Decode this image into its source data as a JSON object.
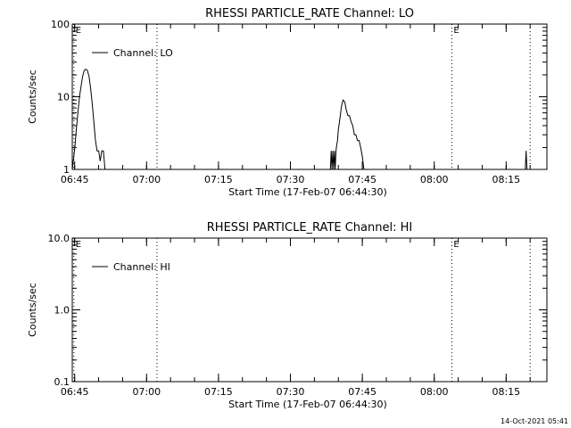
{
  "chart_data": [
    {
      "type": "line",
      "title": "RHESSI PARTICLE_RATE Channel: LO",
      "xlabel": "Start Time (17-Feb-07 06:44:30)",
      "ylabel": "Counts/sec",
      "y_scale": "log",
      "ylim": [
        1,
        100
      ],
      "y_ticks": [
        "1",
        "10",
        "100"
      ],
      "x_ticks": [
        "06:45",
        "07:00",
        "07:15",
        "07:30",
        "07:45",
        "08:00",
        "08:15"
      ],
      "xlim": [
        "06:44:30",
        "08:23:30"
      ],
      "legend": "top-left",
      "grid": false,
      "markers": [
        {
          "time": "06:44:50",
          "label": "E"
        },
        {
          "time": "07:02:10",
          "label": ""
        },
        {
          "time": "08:03:40",
          "label": "E"
        },
        {
          "time": "08:20:00",
          "label": ""
        }
      ],
      "series": [
        {
          "name": "Channel: LO",
          "segments": [
            {
              "x": [
                "06:44:30",
                "06:45:00",
                "06:45:20",
                "06:45:40",
                "06:46:00",
                "06:46:20",
                "06:46:40",
                "06:47:00",
                "06:47:20",
                "06:47:40",
                "06:48:00",
                "06:48:20",
                "06:48:40",
                "06:49:00",
                "06:49:20",
                "06:49:40",
                "06:50:00",
                "06:50:20",
                "06:50:40",
                "06:51:00",
                "06:51:20"
              ],
              "y": [
                1.0,
                1.9,
                3.5,
                6.0,
                10,
                14,
                19,
                23,
                24,
                23,
                19,
                13,
                8,
                4.5,
                2.5,
                1.8,
                1.8,
                1.3,
                1.8,
                1.8,
                1.0
              ]
            },
            {
              "x": [
                "07:38:20",
                "07:38:30",
                "07:38:40",
                "07:38:50",
                "07:39:00",
                "07:39:10",
                "07:39:20",
                "07:39:30",
                "07:39:40",
                "07:39:50",
                "07:40:00",
                "07:40:20",
                "07:40:40",
                "07:41:00",
                "07:41:20",
                "07:41:40",
                "07:42:00",
                "07:42:20",
                "07:42:40",
                "07:43:00",
                "07:43:20",
                "07:43:40",
                "07:44:00",
                "07:44:20",
                "07:44:40",
                "07:45:00",
                "07:45:20"
              ],
              "y": [
                1.0,
                1.8,
                1.0,
                1.8,
                1.0,
                1.8,
                1.0,
                1.8,
                2.2,
                2.5,
                3.5,
                5.0,
                7.5,
                9.0,
                8.5,
                6.5,
                5.5,
                5.5,
                4.5,
                4.0,
                3.0,
                3.0,
                2.5,
                2.5,
                2.0,
                1.5,
                1.0
              ]
            },
            {
              "x": [
                "08:19:00",
                "08:19:10",
                "08:19:20"
              ],
              "y": [
                1.0,
                1.8,
                1.0
              ]
            }
          ]
        }
      ]
    },
    {
      "type": "line",
      "title": "RHESSI PARTICLE_RATE Channel: HI",
      "xlabel": "Start Time (17-Feb-07 06:44:30)",
      "ylabel": "Counts/sec",
      "y_scale": "log",
      "ylim": [
        0.1,
        10
      ],
      "y_ticks": [
        "0.1",
        "1.0",
        "10.0"
      ],
      "x_ticks": [
        "06:45",
        "07:00",
        "07:15",
        "07:30",
        "07:45",
        "08:00",
        "08:15"
      ],
      "xlim": [
        "06:44:30",
        "08:23:30"
      ],
      "legend": "top-left",
      "grid": false,
      "markers": [
        {
          "time": "06:44:50",
          "label": "E"
        },
        {
          "time": "07:02:10",
          "label": ""
        },
        {
          "time": "08:03:40",
          "label": "E"
        },
        {
          "time": "08:20:00",
          "label": ""
        }
      ],
      "series": [
        {
          "name": "Channel: HI",
          "segments": []
        }
      ]
    }
  ],
  "footer": {
    "timestamp": "14-Oct-2021 05:41"
  }
}
